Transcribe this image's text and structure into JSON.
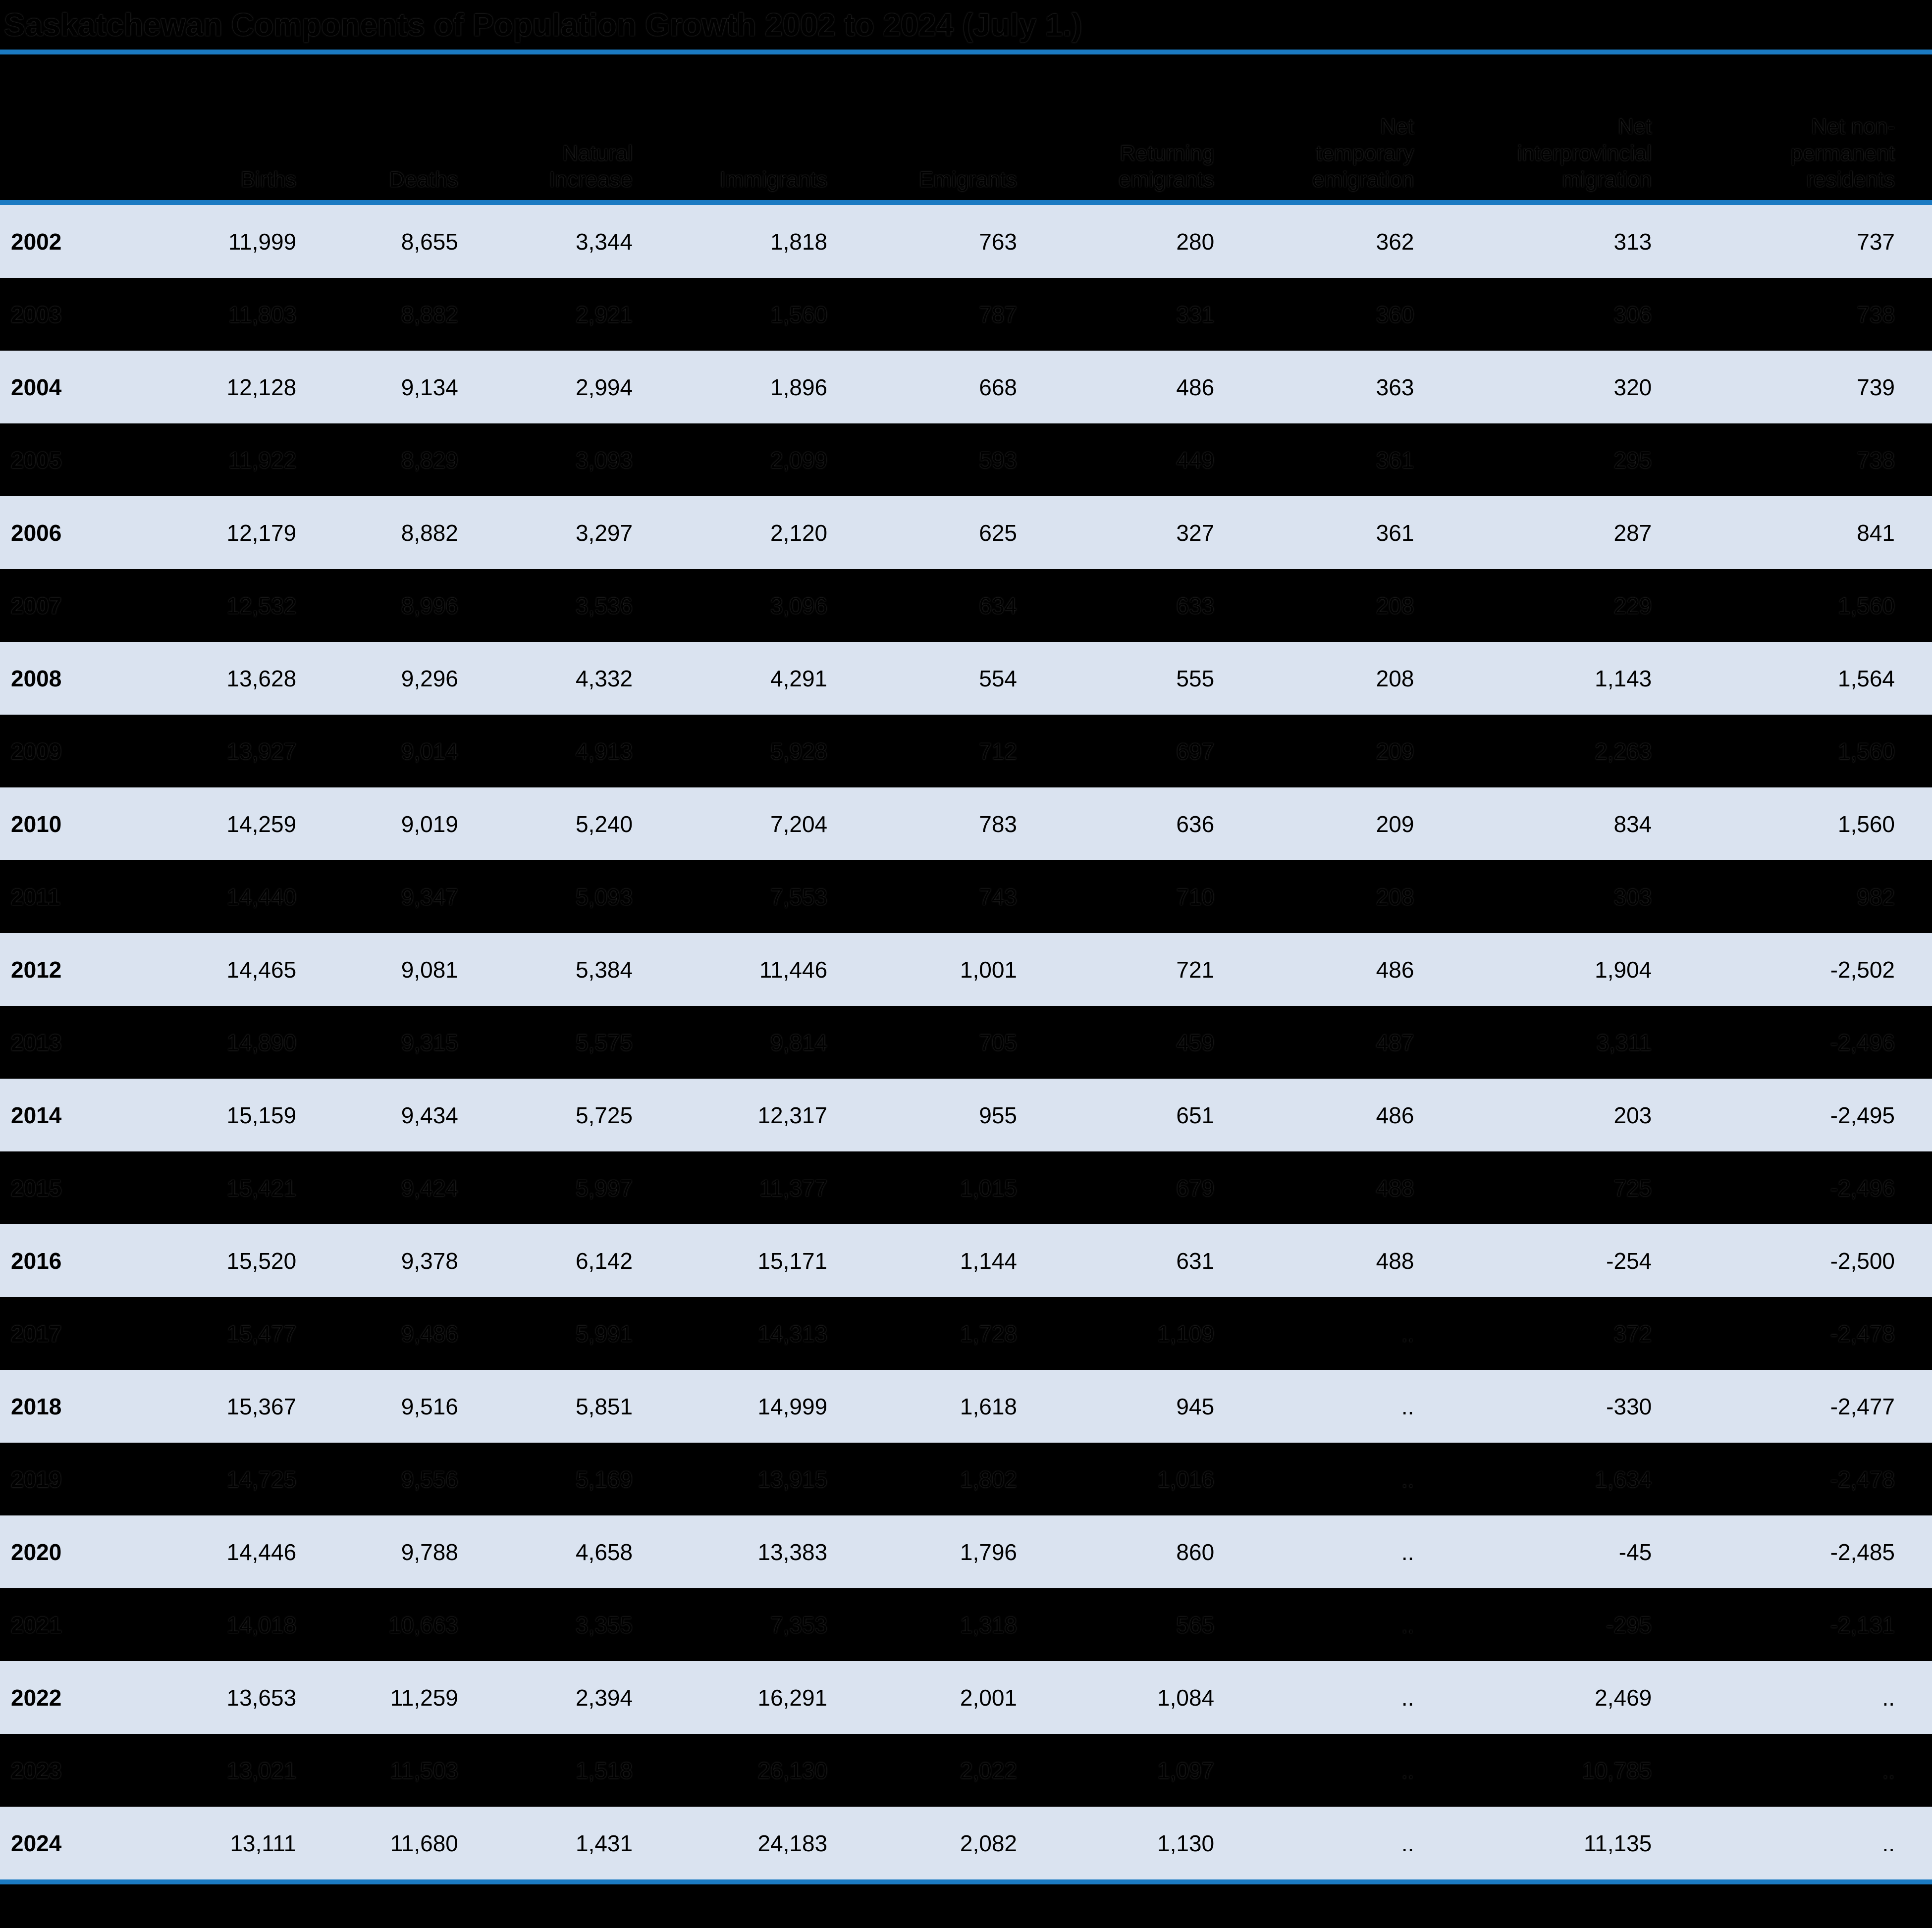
{
  "title": "Saskatchewan Components of Population Growth 2002 to 2024 (July 1.)",
  "colors": {
    "accent_rule": "#1b7ac2",
    "band_light": "#dae3f0",
    "background": "#000000",
    "text": "#000000"
  },
  "table": {
    "columns": [
      [
        ""
      ],
      [
        "Births"
      ],
      [
        "Deaths"
      ],
      [
        "Natural",
        "Increase"
      ],
      [
        "Immigrants"
      ],
      [
        "Emigrants"
      ],
      [
        "Returning",
        "emigrants"
      ],
      [
        "Net",
        "temporary",
        "emigration"
      ],
      [
        "Net",
        "interprovincial",
        "migration"
      ],
      [
        "Net non-",
        "permanent",
        "residents"
      ]
    ],
    "rows": [
      {
        "year": "2002",
        "values": [
          "11,999",
          "8,655",
          "3,344",
          "1,818",
          "763",
          "280",
          "362",
          "313",
          "737"
        ]
      },
      {
        "year": "2003",
        "values": [
          "11,803",
          "8,882",
          "2,921",
          "1,560",
          "787",
          "331",
          "360",
          "306",
          "738"
        ]
      },
      {
        "year": "2004",
        "values": [
          "12,128",
          "9,134",
          "2,994",
          "1,896",
          "668",
          "486",
          "363",
          "320",
          "739"
        ]
      },
      {
        "year": "2005",
        "values": [
          "11,922",
          "8,829",
          "3,093",
          "2,099",
          "593",
          "449",
          "361",
          "295",
          "738"
        ]
      },
      {
        "year": "2006",
        "values": [
          "12,179",
          "8,882",
          "3,297",
          "2,120",
          "625",
          "327",
          "361",
          "287",
          "841"
        ]
      },
      {
        "year": "2007",
        "values": [
          "12,532",
          "8,996",
          "3,536",
          "3,096",
          "634",
          "633",
          "208",
          "229",
          "1,560"
        ]
      },
      {
        "year": "2008",
        "values": [
          "13,628",
          "9,296",
          "4,332",
          "4,291",
          "554",
          "555",
          "208",
          "1,143",
          "1,564"
        ]
      },
      {
        "year": "2009",
        "values": [
          "13,927",
          "9,014",
          "4,913",
          "5,928",
          "712",
          "697",
          "209",
          "2,263",
          "1,560"
        ]
      },
      {
        "year": "2010",
        "values": [
          "14,259",
          "9,019",
          "5,240",
          "7,204",
          "783",
          "636",
          "209",
          "834",
          "1,560"
        ]
      },
      {
        "year": "2011",
        "values": [
          "14,440",
          "9,347",
          "5,093",
          "7,553",
          "743",
          "710",
          "208",
          "303",
          "982"
        ]
      },
      {
        "year": "2012",
        "values": [
          "14,465",
          "9,081",
          "5,384",
          "11,446",
          "1,001",
          "721",
          "486",
          "1,904",
          "-2,502"
        ]
      },
      {
        "year": "2013",
        "values": [
          "14,890",
          "9,315",
          "5,575",
          "9,814",
          "705",
          "459",
          "487",
          "3,311",
          "-2,496"
        ]
      },
      {
        "year": "2014",
        "values": [
          "15,159",
          "9,434",
          "5,725",
          "12,317",
          "955",
          "651",
          "486",
          "203",
          "-2,495"
        ]
      },
      {
        "year": "2015",
        "values": [
          "15,421",
          "9,424",
          "5,997",
          "11,377",
          "1,015",
          "679",
          "488",
          "725",
          "-2,496"
        ]
      },
      {
        "year": "2016",
        "values": [
          "15,520",
          "9,378",
          "6,142",
          "15,171",
          "1,144",
          "631",
          "488",
          "-254",
          "-2,500"
        ]
      },
      {
        "year": "2017",
        "values": [
          "15,477",
          "9,486",
          "5,991",
          "14,313",
          "1,728",
          "1,109",
          "..",
          "372",
          "-2,478"
        ]
      },
      {
        "year": "2018",
        "values": [
          "15,367",
          "9,516",
          "5,851",
          "14,999",
          "1,618",
          "945",
          "..",
          "-330",
          "-2,477"
        ]
      },
      {
        "year": "2019",
        "values": [
          "14,725",
          "9,556",
          "5,169",
          "13,915",
          "1,802",
          "1,016",
          "..",
          "1,634",
          "-2,478"
        ]
      },
      {
        "year": "2020",
        "values": [
          "14,446",
          "9,788",
          "4,658",
          "13,383",
          "1,796",
          "860",
          "..",
          "-45",
          "-2,485"
        ]
      },
      {
        "year": "2021",
        "values": [
          "14,018",
          "10,663",
          "3,355",
          "7,353",
          "1,318",
          "565",
          "..",
          "-295",
          "-2,131"
        ]
      },
      {
        "year": "2022",
        "values": [
          "13,653",
          "11,259",
          "2,394",
          "16,291",
          "2,001",
          "1,084",
          "..",
          "2,469",
          ".."
        ]
      },
      {
        "year": "2023",
        "values": [
          "13,021",
          "11,503",
          "1,518",
          "26,130",
          "2,022",
          "1,097",
          "..",
          "10,785",
          ".."
        ]
      },
      {
        "year": "2024",
        "values": [
          "13,111",
          "11,680",
          "1,431",
          "24,183",
          "2,082",
          "1,130",
          "..",
          "11,135",
          ".."
        ]
      }
    ]
  }
}
